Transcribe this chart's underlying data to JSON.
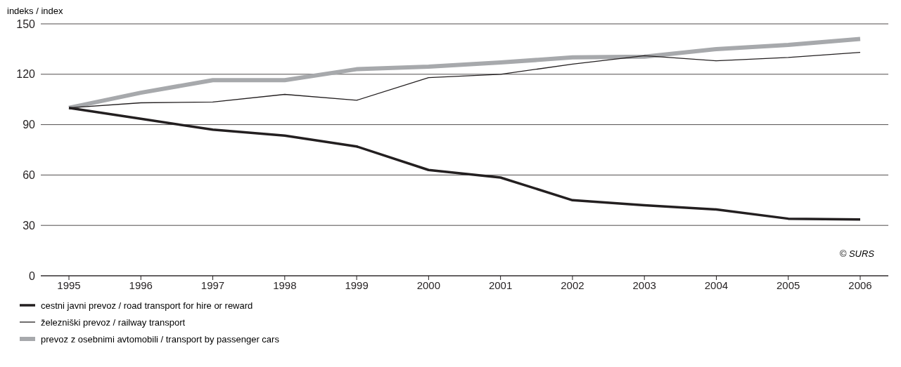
{
  "chart_data": {
    "type": "line",
    "ylabel": "indeks / index",
    "categories": [
      "1995",
      "1996",
      "1997",
      "1998",
      "1999",
      "2000",
      "2001",
      "2002",
      "2003",
      "2004",
      "2005",
      "2006"
    ],
    "series": [
      {
        "name": "cestni javni prevoz / road transport for hire or reward",
        "color": "#231f20",
        "values": [
          100,
          93.5,
          87,
          83.5,
          77,
          63,
          58.5,
          45,
          42,
          39.5,
          34,
          33.5
        ]
      },
      {
        "name": "železniški prevoz / railway transport",
        "color": "#231f20",
        "values": [
          100,
          103,
          103.5,
          108,
          104.5,
          118,
          120,
          126,
          131,
          128,
          130,
          133
        ]
      },
      {
        "name": "prevoz z osebnimi avtomobili / transport by passenger cars",
        "color": "#a7a9ac",
        "values": [
          100,
          109,
          116.5,
          116.5,
          123,
          124.5,
          127,
          130,
          130.5,
          135,
          137.5,
          141
        ]
      }
    ],
    "ylim": [
      0,
      150
    ],
    "yticks": [
      0,
      30,
      60,
      90,
      120,
      150
    ],
    "grid": "y",
    "legend": "bottom",
    "marker": "none",
    "line_style": "solid",
    "annotations": [
      "© SURS"
    ]
  }
}
